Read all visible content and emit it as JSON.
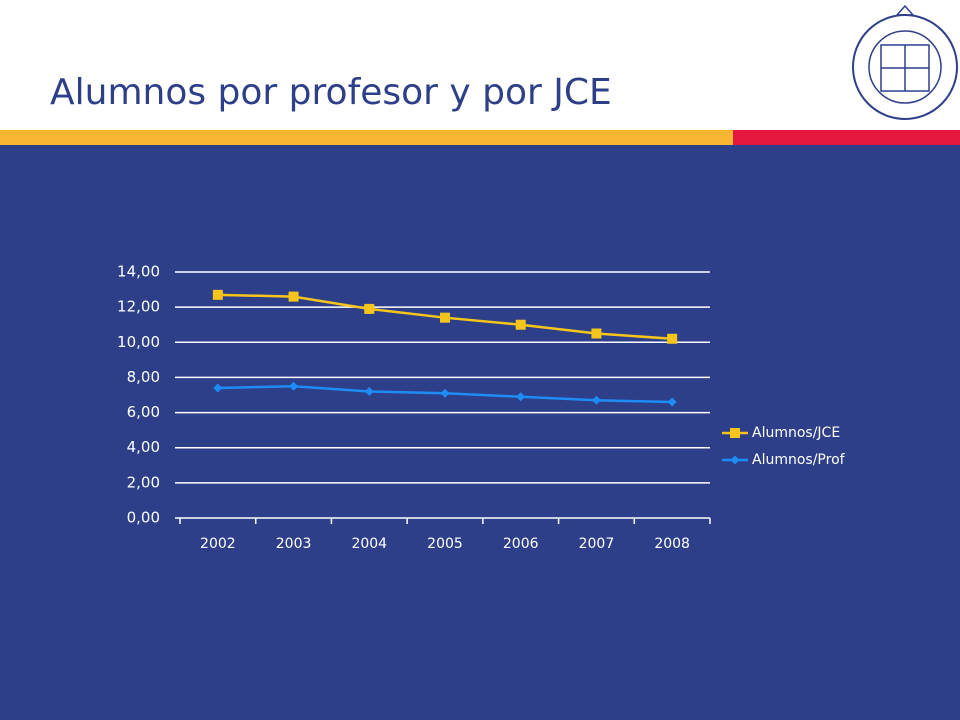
{
  "chart_data": {
    "type": "line",
    "title": "Alumnos por profesor y por JCE",
    "categories": [
      "2002",
      "2003",
      "2004",
      "2005",
      "2006",
      "2007",
      "2008"
    ],
    "series": [
      {
        "name": "Alumnos/JCE",
        "color": "#f6c51b",
        "marker": "square",
        "values": [
          12.7,
          12.6,
          11.9,
          11.4,
          11.0,
          10.5,
          10.2
        ]
      },
      {
        "name": "Alumnos/Prof",
        "color": "#1e8cf5",
        "marker": "diamond",
        "values": [
          7.4,
          7.5,
          7.2,
          7.1,
          6.9,
          6.7,
          6.6
        ]
      }
    ],
    "ylim": [
      0,
      14
    ],
    "yticks": [
      {
        "value": 0,
        "label": "0,00"
      },
      {
        "value": 2,
        "label": "2,00"
      },
      {
        "value": 4,
        "label": "4,00"
      },
      {
        "value": 6,
        "label": "6,00"
      },
      {
        "value": 8,
        "label": "8,00"
      },
      {
        "value": 10,
        "label": "10,00"
      },
      {
        "value": 12,
        "label": "12,00"
      },
      {
        "value": 14,
        "label": "14,00"
      }
    ],
    "grid": true,
    "legend": "right"
  }
}
